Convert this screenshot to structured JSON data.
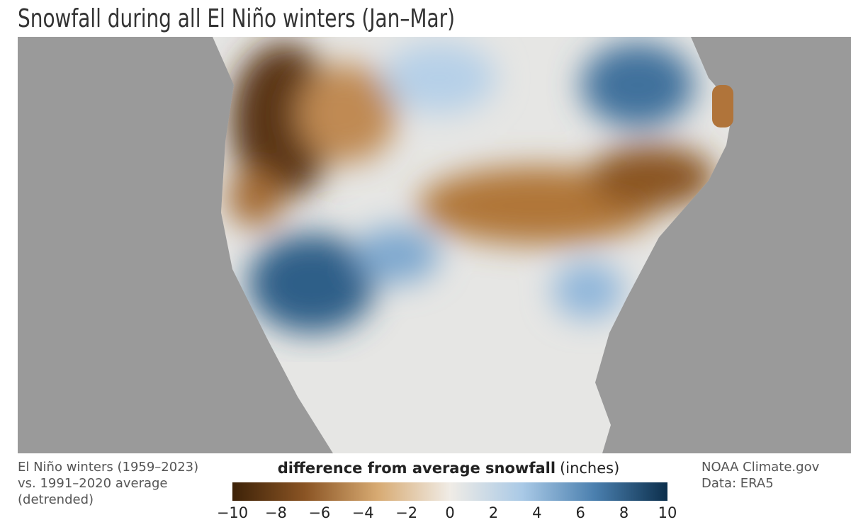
{
  "title": "Snowfall during all El Niño winters (Jan–Mar)",
  "note": [
    "El Niño winters (1959–2023)",
    "vs. 1991–2020 average",
    "(detrended)"
  ],
  "legend": {
    "title": "difference from average snowfall",
    "unit": "(inches)",
    "colors": [
      "#3d2208",
      "#8a5424",
      "#d7aa72",
      "#f0ece6",
      "#a9c9e6",
      "#4a7fae",
      "#0c2f4c"
    ],
    "ticks": [
      {
        "value": -10,
        "label": "−10"
      },
      {
        "value": -8,
        "label": "−8"
      },
      {
        "value": -6,
        "label": "−6"
      },
      {
        "value": -4,
        "label": "−4"
      },
      {
        "value": -2,
        "label": "−2"
      },
      0,
      2,
      4,
      6,
      8,
      10
    ]
  },
  "credits": [
    "NOAA Climate.gov",
    "Data: ERA5"
  ]
}
